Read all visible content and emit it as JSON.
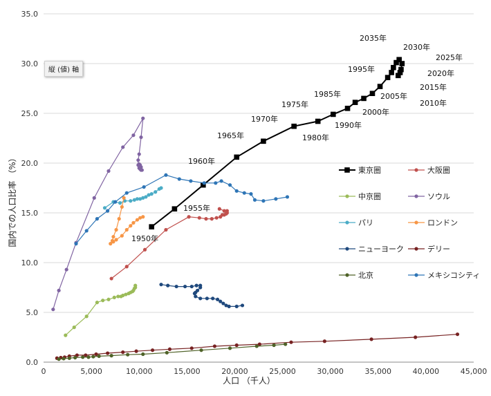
{
  "tooltip": "縦 (値) 軸",
  "chart_data": {
    "type": "line",
    "xlabel": "人口 （千人）",
    "ylabel": "国内での人口比率 （%）",
    "xlim": [
      0,
      45000
    ],
    "ylim": [
      0,
      35
    ],
    "xticks": [
      0,
      5000,
      10000,
      15000,
      20000,
      25000,
      30000,
      35000,
      40000,
      45000
    ],
    "xtick_labels": [
      "0",
      "5,000",
      "10,000",
      "15,000",
      "20,000",
      "25,000",
      "30,000",
      "35,000",
      "40,000",
      "45,000"
    ],
    "yticks": [
      0,
      5,
      10,
      15,
      20,
      25,
      30,
      35
    ],
    "ytick_labels": [
      "0.0",
      "5.0",
      "10.0",
      "15.0",
      "20.0",
      "25.0",
      "30.0",
      "35.0"
    ],
    "grid": "horizontal",
    "legend_position": "right",
    "series": [
      {
        "name": "東京圏",
        "color": "#000000",
        "marker": "square",
        "points": [
          [
            11300,
            13.6
          ],
          [
            13700,
            15.4
          ],
          [
            16700,
            17.8
          ],
          [
            20200,
            20.6
          ],
          [
            23000,
            22.2
          ],
          [
            26200,
            23.7
          ],
          [
            28700,
            24.2
          ],
          [
            30300,
            24.9
          ],
          [
            31800,
            25.5
          ],
          [
            32600,
            26.1
          ],
          [
            33500,
            26.5
          ],
          [
            34400,
            27.0
          ],
          [
            35200,
            27.7
          ],
          [
            36000,
            28.6
          ],
          [
            36400,
            29.1
          ],
          [
            36600,
            29.6
          ],
          [
            36900,
            30.1
          ],
          [
            37200,
            30.4
          ],
          [
            37500,
            30.0
          ],
          [
            37400,
            29.4
          ],
          [
            37300,
            29.1
          ],
          [
            37100,
            28.8
          ]
        ]
      },
      {
        "name": "大阪圏",
        "color": "#c0504d",
        "marker": "circle",
        "points": [
          [
            7100,
            8.4
          ],
          [
            8700,
            9.6
          ],
          [
            10600,
            11.3
          ],
          [
            12800,
            13.3
          ],
          [
            15200,
            14.6
          ],
          [
            16300,
            14.5
          ],
          [
            17000,
            14.4
          ],
          [
            17600,
            14.4
          ],
          [
            18100,
            14.5
          ],
          [
            18500,
            14.6
          ],
          [
            18700,
            14.8
          ],
          [
            18900,
            14.8
          ],
          [
            19100,
            14.9
          ],
          [
            19200,
            15.0
          ],
          [
            19200,
            15.2
          ],
          [
            18900,
            15.2
          ],
          [
            18400,
            15.4
          ]
        ]
      },
      {
        "name": "中京圏",
        "color": "#9bbb59",
        "marker": "circle",
        "points": [
          [
            2300,
            2.7
          ],
          [
            3200,
            3.5
          ],
          [
            4500,
            4.6
          ],
          [
            5600,
            6.0
          ],
          [
            6200,
            6.2
          ],
          [
            6800,
            6.3
          ],
          [
            7400,
            6.5
          ],
          [
            7800,
            6.6
          ],
          [
            8100,
            6.6
          ],
          [
            8300,
            6.7
          ],
          [
            8600,
            6.8
          ],
          [
            8900,
            6.9
          ],
          [
            9100,
            7.0
          ],
          [
            9300,
            7.1
          ],
          [
            9400,
            7.2
          ],
          [
            9500,
            7.4
          ],
          [
            9600,
            7.5
          ],
          [
            9600,
            7.7
          ]
        ]
      },
      {
        "name": "ソウル",
        "color": "#8064a2",
        "marker": "circle",
        "points": [
          [
            1000,
            5.3
          ],
          [
            1600,
            7.2
          ],
          [
            2400,
            9.3
          ],
          [
            3400,
            12.0
          ],
          [
            5300,
            16.5
          ],
          [
            6800,
            19.2
          ],
          [
            8300,
            21.6
          ],
          [
            9400,
            22.8
          ],
          [
            10400,
            24.5
          ],
          [
            10200,
            22.6
          ],
          [
            10000,
            20.9
          ],
          [
            9900,
            20.3
          ],
          [
            9900,
            19.8
          ],
          [
            10000,
            19.5
          ],
          [
            10100,
            19.4
          ],
          [
            10200,
            19.3
          ],
          [
            10300,
            19.3
          ],
          [
            10200,
            19.6
          ],
          [
            10100,
            19.8
          ],
          [
            10000,
            19.9
          ]
        ]
      },
      {
        "name": "パリ",
        "color": "#4bacc6",
        "marker": "circle",
        "points": [
          [
            6400,
            15.5
          ],
          [
            7300,
            16.1
          ],
          [
            8000,
            16.0
          ],
          [
            8500,
            16.2
          ],
          [
            9100,
            16.2
          ],
          [
            9500,
            16.3
          ],
          [
            9800,
            16.4
          ],
          [
            10100,
            16.4
          ],
          [
            10400,
            16.5
          ],
          [
            10700,
            16.6
          ],
          [
            11000,
            16.8
          ],
          [
            11300,
            16.9
          ],
          [
            11700,
            17.1
          ],
          [
            12100,
            17.4
          ],
          [
            12300,
            17.5
          ]
        ]
      },
      {
        "name": "ロンドン",
        "color": "#f79646",
        "marker": "circle",
        "points": [
          [
            8400,
            16.5
          ],
          [
            8200,
            15.6
          ],
          [
            7900,
            14.4
          ],
          [
            7600,
            13.3
          ],
          [
            7300,
            12.6
          ],
          [
            7200,
            12.2
          ],
          [
            7000,
            11.9
          ],
          [
            7300,
            12.1
          ],
          [
            7600,
            12.3
          ],
          [
            8200,
            12.7
          ],
          [
            8700,
            13.3
          ],
          [
            9100,
            13.7
          ],
          [
            9400,
            14.0
          ],
          [
            9800,
            14.3
          ],
          [
            10100,
            14.5
          ],
          [
            10400,
            14.6
          ]
        ]
      },
      {
        "name": "ニューヨーク",
        "color": "#1f497d",
        "marker": "circle",
        "points": [
          [
            12300,
            7.8
          ],
          [
            13000,
            7.7
          ],
          [
            13900,
            7.6
          ],
          [
            14800,
            7.6
          ],
          [
            15500,
            7.6
          ],
          [
            16000,
            7.7
          ],
          [
            16400,
            7.7
          ],
          [
            16400,
            7.5
          ],
          [
            16100,
            7.2
          ],
          [
            15900,
            7.0
          ],
          [
            15800,
            6.9
          ],
          [
            15900,
            6.6
          ],
          [
            16400,
            6.4
          ],
          [
            17100,
            6.4
          ],
          [
            17700,
            6.4
          ],
          [
            18200,
            6.3
          ],
          [
            18500,
            6.1
          ],
          [
            18800,
            5.9
          ],
          [
            19100,
            5.7
          ],
          [
            19400,
            5.6
          ],
          [
            20200,
            5.6
          ],
          [
            20800,
            5.7
          ]
        ]
      },
      {
        "name": "デリー",
        "color": "#772222",
        "marker": "circle",
        "points": [
          [
            1400,
            0.4
          ],
          [
            1800,
            0.45
          ],
          [
            2200,
            0.5
          ],
          [
            2700,
            0.6
          ],
          [
            3500,
            0.7
          ],
          [
            4400,
            0.7
          ],
          [
            5500,
            0.8
          ],
          [
            6700,
            0.9
          ],
          [
            8300,
            1.0
          ],
          [
            9700,
            1.1
          ],
          [
            11400,
            1.2
          ],
          [
            13200,
            1.3
          ],
          [
            15500,
            1.4
          ],
          [
            17900,
            1.6
          ],
          [
            20200,
            1.7
          ],
          [
            22600,
            1.8
          ],
          [
            25900,
            2.0
          ],
          [
            29400,
            2.1
          ],
          [
            34300,
            2.3
          ],
          [
            38900,
            2.5
          ],
          [
            43300,
            2.8
          ]
        ]
      },
      {
        "name": "北京",
        "color": "#4f6228",
        "marker": "circle",
        "points": [
          [
            1600,
            0.3
          ],
          [
            2100,
            0.35
          ],
          [
            2700,
            0.4
          ],
          [
            3300,
            0.45
          ],
          [
            4100,
            0.5
          ],
          [
            4700,
            0.5
          ],
          [
            5200,
            0.55
          ],
          [
            5800,
            0.6
          ],
          [
            7100,
            0.65
          ],
          [
            8800,
            0.75
          ],
          [
            10400,
            0.8
          ],
          [
            12900,
            0.95
          ],
          [
            16500,
            1.2
          ],
          [
            19500,
            1.4
          ],
          [
            22300,
            1.6
          ],
          [
            24100,
            1.7
          ],
          [
            25300,
            1.8
          ]
        ]
      },
      {
        "name": "メキシコシティ",
        "color": "#2e75b6",
        "marker": "circle",
        "points": [
          [
            3400,
            11.9
          ],
          [
            4500,
            13.2
          ],
          [
            5600,
            14.4
          ],
          [
            6700,
            15.2
          ],
          [
            7500,
            16.1
          ],
          [
            8700,
            17.0
          ],
          [
            10500,
            17.6
          ],
          [
            12800,
            18.8
          ],
          [
            14200,
            18.4
          ],
          [
            15400,
            18.2
          ],
          [
            16800,
            18.0
          ],
          [
            18000,
            18.0
          ],
          [
            18600,
            18.2
          ],
          [
            19500,
            17.8
          ],
          [
            20200,
            17.2
          ],
          [
            21000,
            17.0
          ],
          [
            21700,
            16.9
          ],
          [
            22100,
            16.3
          ],
          [
            23000,
            16.2
          ],
          [
            24300,
            16.4
          ],
          [
            25500,
            16.6
          ]
        ]
      }
    ],
    "annotations": [
      {
        "text": "1950年",
        "x": 11300,
        "y": 13.6
      },
      {
        "text": "1955年",
        "x": 13700,
        "y": 15.4
      },
      {
        "text": "1960年",
        "x": 16700,
        "y": 17.8
      },
      {
        "text": "1965年",
        "x": 20200,
        "y": 20.6
      },
      {
        "text": "1970年",
        "x": 23000,
        "y": 22.2
      },
      {
        "text": "1975年",
        "x": 26200,
        "y": 23.7
      },
      {
        "text": "1980年",
        "x": 28700,
        "y": 24.2
      },
      {
        "text": "1985年",
        "x": 30300,
        "y": 24.9
      },
      {
        "text": "1990年",
        "x": 31800,
        "y": 25.5
      },
      {
        "text": "1995年",
        "x": 32600,
        "y": 26.1
      },
      {
        "text": "2000年",
        "x": 33500,
        "y": 26.5
      },
      {
        "text": "2005年",
        "x": 35200,
        "y": 27.7
      },
      {
        "text": "2010年",
        "x": 36400,
        "y": 29.1
      },
      {
        "text": "2015年",
        "x": 36900,
        "y": 30.1
      },
      {
        "text": "2020年",
        "x": 37500,
        "y": 30.0
      },
      {
        "text": "2025年",
        "x": 37400,
        "y": 29.4
      },
      {
        "text": "2030年",
        "x": 37200,
        "y": 30.4
      },
      {
        "text": "2035年",
        "x": 36000,
        "y": 28.6
      }
    ]
  }
}
